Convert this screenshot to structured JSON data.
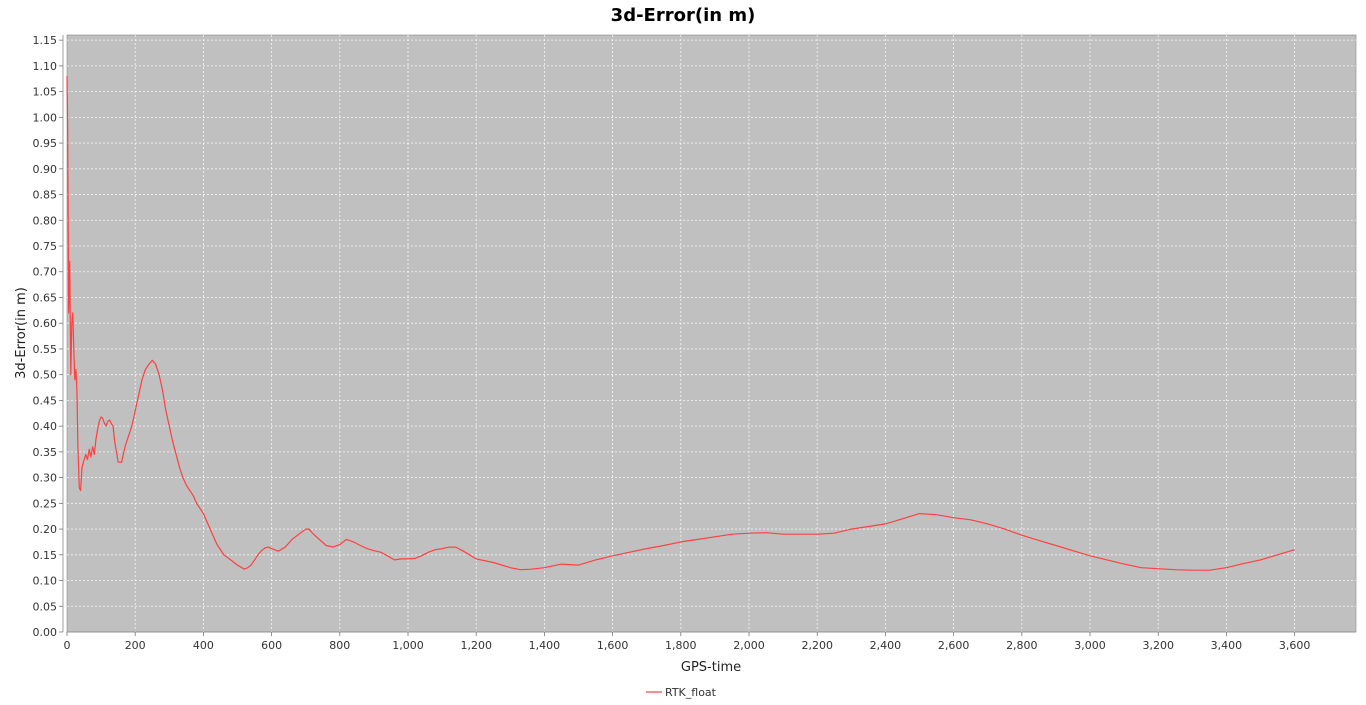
{
  "chart_data": {
    "type": "line",
    "title": "3d-Error(in m)",
    "xlabel": "GPS-time",
    "ylabel": "3d-Error(in m)",
    "xlim": [
      0,
      3780
    ],
    "ylim": [
      0,
      1.16
    ],
    "x_ticks": [
      0,
      200,
      400,
      600,
      800,
      1000,
      1200,
      1400,
      1600,
      1800,
      2000,
      2200,
      2400,
      2600,
      2800,
      3000,
      3200,
      3400,
      3600
    ],
    "x_tick_labels": [
      "0",
      "200",
      "400",
      "600",
      "800",
      "1,000",
      "1,200",
      "1,400",
      "1,600",
      "1,800",
      "2,000",
      "2,200",
      "2,400",
      "2,600",
      "2,800",
      "3,000",
      "3,200",
      "3,400",
      "3,600"
    ],
    "y_ticks": [
      0,
      0.05,
      0.1,
      0.15,
      0.2,
      0.25,
      0.3,
      0.35,
      0.4,
      0.45,
      0.5,
      0.55,
      0.6,
      0.65,
      0.7,
      0.75,
      0.8,
      0.85,
      0.9,
      0.95,
      1.0,
      1.05,
      1.1,
      1.15
    ],
    "y_tick_labels": [
      "0.00",
      "0.05",
      "0.10",
      "0.15",
      "0.20",
      "0.25",
      "0.30",
      "0.35",
      "0.40",
      "0.45",
      "0.50",
      "0.55",
      "0.60",
      "0.65",
      "0.70",
      "0.75",
      "0.80",
      "0.85",
      "0.90",
      "0.95",
      "1.00",
      "1.05",
      "1.10",
      "1.15"
    ],
    "grid": true,
    "legend_position": "bottom-center",
    "series": [
      {
        "name": "RTK_float",
        "color": "#ff4040",
        "x": [
          0,
          2,
          5,
          8,
          11,
          14,
          17,
          20,
          23,
          26,
          29,
          32,
          36,
          40,
          44,
          48,
          55,
          60,
          65,
          70,
          75,
          80,
          85,
          90,
          95,
          100,
          105,
          110,
          115,
          120,
          125,
          130,
          135,
          140,
          150,
          160,
          165,
          170,
          180,
          190,
          200,
          210,
          220,
          230,
          240,
          250,
          260,
          270,
          280,
          290,
          300,
          310,
          320,
          330,
          340,
          350,
          360,
          370,
          380,
          400,
          420,
          440,
          460,
          480,
          500,
          520,
          530,
          540,
          550,
          560,
          570,
          580,
          590,
          600,
          620,
          640,
          660,
          680,
          700,
          710,
          720,
          740,
          760,
          780,
          800,
          820,
          840,
          860,
          880,
          900,
          920,
          940,
          960,
          980,
          1000,
          1020,
          1040,
          1060,
          1080,
          1100,
          1120,
          1140,
          1160,
          1180,
          1200,
          1250,
          1300,
          1330,
          1360,
          1400,
          1450,
          1500,
          1550,
          1600,
          1650,
          1700,
          1750,
          1800,
          1850,
          1900,
          1950,
          2000,
          2050,
          2100,
          2150,
          2200,
          2250,
          2300,
          2350,
          2400,
          2450,
          2500,
          2550,
          2600,
          2650,
          2700,
          2750,
          2800,
          2850,
          2900,
          2950,
          3000,
          3050,
          3100,
          3150,
          3200,
          3250,
          3300,
          3350,
          3400,
          3450,
          3500,
          3550,
          3600
        ],
        "y": [
          1.08,
          0.98,
          0.62,
          0.72,
          0.5,
          0.6,
          0.62,
          0.55,
          0.49,
          0.51,
          0.47,
          0.36,
          0.28,
          0.275,
          0.32,
          0.33,
          0.345,
          0.335,
          0.355,
          0.34,
          0.36,
          0.345,
          0.375,
          0.395,
          0.41,
          0.418,
          0.415,
          0.405,
          0.4,
          0.41,
          0.412,
          0.405,
          0.4,
          0.37,
          0.33,
          0.33,
          0.345,
          0.36,
          0.38,
          0.4,
          0.43,
          0.46,
          0.49,
          0.51,
          0.52,
          0.528,
          0.52,
          0.5,
          0.47,
          0.43,
          0.4,
          0.37,
          0.345,
          0.32,
          0.3,
          0.285,
          0.275,
          0.265,
          0.25,
          0.23,
          0.2,
          0.17,
          0.15,
          0.14,
          0.13,
          0.122,
          0.125,
          0.13,
          0.14,
          0.15,
          0.158,
          0.163,
          0.165,
          0.162,
          0.157,
          0.165,
          0.18,
          0.19,
          0.2,
          0.2,
          0.192,
          0.18,
          0.168,
          0.165,
          0.17,
          0.18,
          0.175,
          0.168,
          0.162,
          0.158,
          0.155,
          0.148,
          0.14,
          0.142,
          0.142,
          0.143,
          0.148,
          0.155,
          0.16,
          0.162,
          0.165,
          0.165,
          0.158,
          0.15,
          0.142,
          0.135,
          0.125,
          0.121,
          0.122,
          0.125,
          0.132,
          0.13,
          0.14,
          0.148,
          0.155,
          0.162,
          0.168,
          0.175,
          0.18,
          0.185,
          0.19,
          0.192,
          0.193,
          0.19,
          0.19,
          0.19,
          0.192,
          0.2,
          0.205,
          0.21,
          0.22,
          0.23,
          0.228,
          0.222,
          0.218,
          0.21,
          0.2,
          0.188,
          0.178,
          0.168,
          0.158,
          0.148,
          0.14,
          0.132,
          0.125,
          0.123,
          0.121,
          0.12,
          0.12,
          0.125,
          0.133,
          0.14,
          0.15,
          0.16
        ]
      }
    ]
  }
}
